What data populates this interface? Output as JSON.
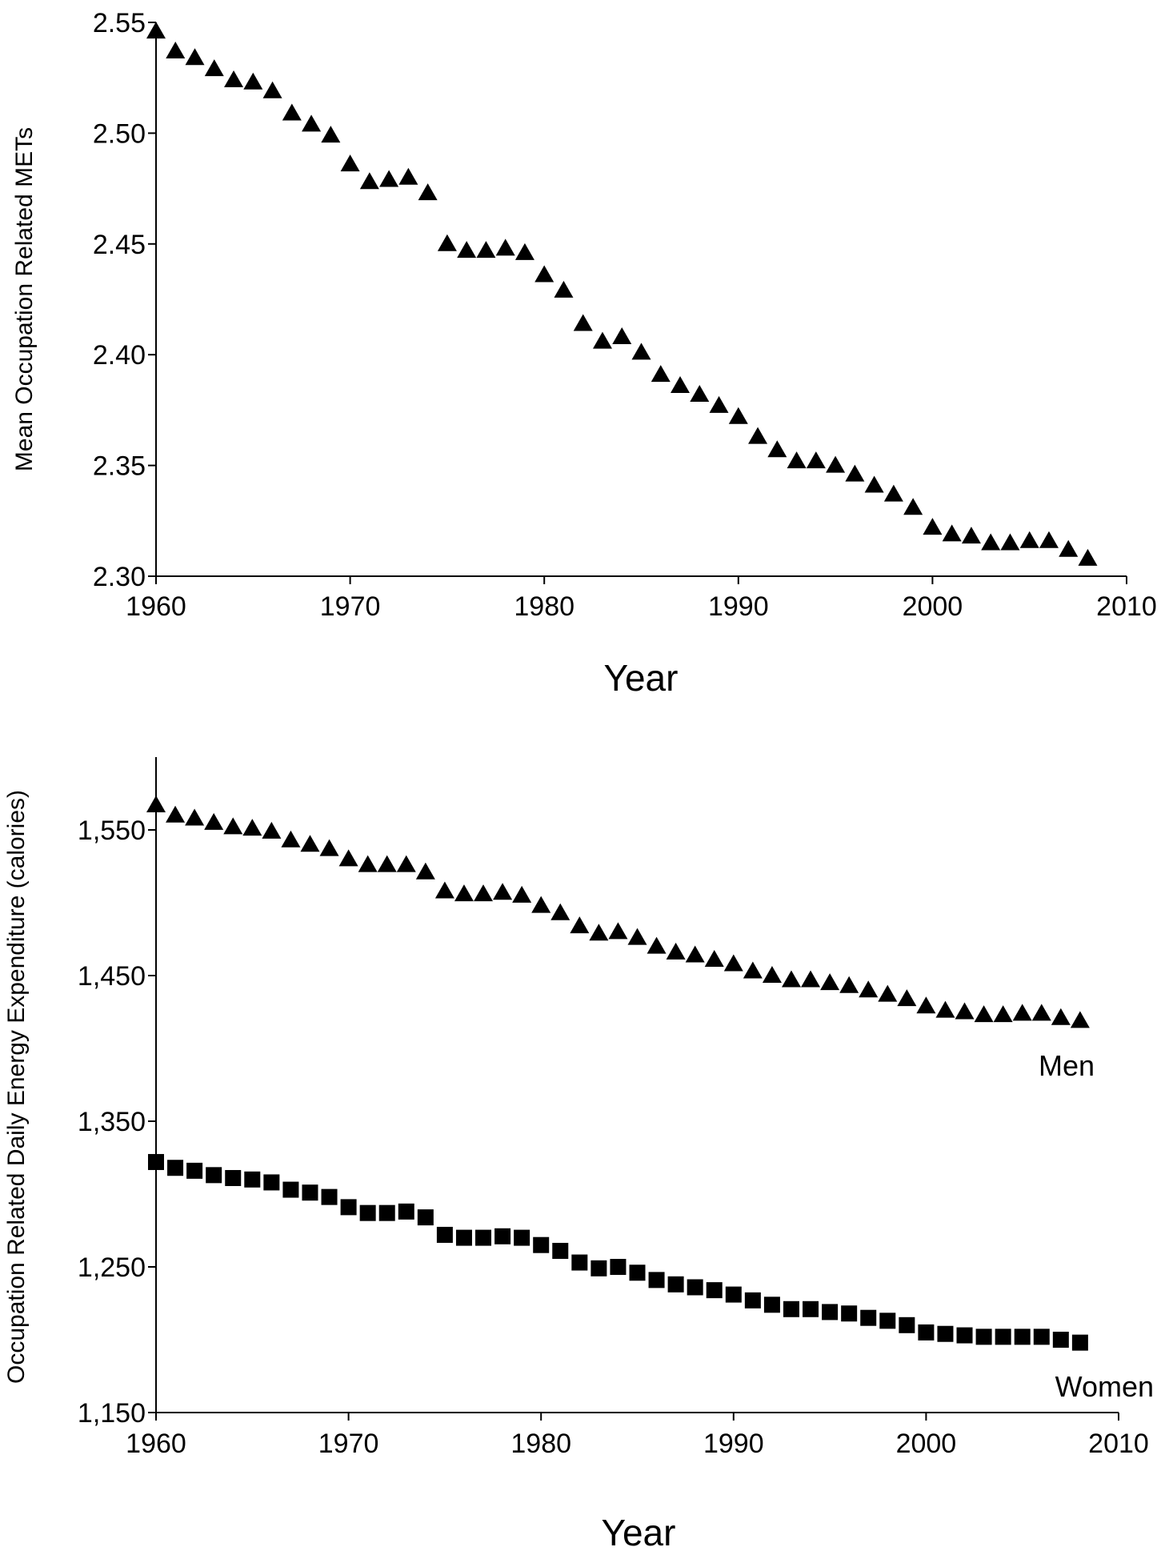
{
  "chart_data": [
    {
      "type": "scatter",
      "xlabel": "Year",
      "ylabel": "Mean Occupation Related METs",
      "xlim": [
        1960,
        2010
      ],
      "ylim": [
        2.3,
        2.55
      ],
      "x_ticks": [
        "1960",
        "1970",
        "1980",
        "1990",
        "2000",
        "2010"
      ],
      "y_ticks": [
        "2.30",
        "2.35",
        "2.40",
        "2.45",
        "2.50",
        "2.55"
      ],
      "grid": false,
      "series": [
        {
          "marker": "triangle",
          "color": "#000000",
          "x": [
            1960,
            1961,
            1962,
            1963,
            1964,
            1965,
            1966,
            1967,
            1968,
            1969,
            1970,
            1971,
            1972,
            1973,
            1974,
            1975,
            1976,
            1977,
            1978,
            1979,
            1980,
            1981,
            1982,
            1983,
            1984,
            1985,
            1986,
            1987,
            1988,
            1989,
            1990,
            1991,
            1992,
            1993,
            1994,
            1995,
            1996,
            1997,
            1998,
            1999,
            2000,
            2001,
            2002,
            2003,
            2004,
            2005,
            2006,
            2007,
            2008
          ],
          "y": [
            2.546,
            2.537,
            2.534,
            2.529,
            2.524,
            2.523,
            2.519,
            2.509,
            2.504,
            2.499,
            2.486,
            2.478,
            2.479,
            2.48,
            2.473,
            2.45,
            2.447,
            2.447,
            2.448,
            2.446,
            2.436,
            2.429,
            2.414,
            2.406,
            2.408,
            2.401,
            2.391,
            2.386,
            2.382,
            2.377,
            2.372,
            2.363,
            2.357,
            2.352,
            2.352,
            2.35,
            2.346,
            2.341,
            2.337,
            2.331,
            2.322,
            2.319,
            2.318,
            2.315,
            2.315,
            2.316,
            2.316,
            2.312,
            2.308
          ]
        }
      ]
    },
    {
      "type": "scatter",
      "xlabel": "Year",
      "ylabel": "Occupation Related Daily Energy Expenditure (calories)",
      "xlim": [
        1960,
        2010
      ],
      "ylim": [
        1150,
        1600
      ],
      "x_ticks": [
        "1960",
        "1970",
        "1980",
        "1990",
        "2000",
        "2010"
      ],
      "y_ticks": [
        "1,150",
        "1,250",
        "1,350",
        "1,450",
        "1,550"
      ],
      "grid": false,
      "series": [
        {
          "name": "Men",
          "marker": "triangle",
          "color": "#000000",
          "x": [
            1960,
            1961,
            1962,
            1963,
            1964,
            1965,
            1966,
            1967,
            1968,
            1969,
            1970,
            1971,
            1972,
            1973,
            1974,
            1975,
            1976,
            1977,
            1978,
            1979,
            1980,
            1981,
            1982,
            1983,
            1984,
            1985,
            1986,
            1987,
            1988,
            1989,
            1990,
            1991,
            1992,
            1993,
            1994,
            1995,
            1996,
            1997,
            1998,
            1999,
            2000,
            2001,
            2002,
            2003,
            2004,
            2005,
            2006,
            2007,
            2008
          ],
          "y": [
            1567,
            1560,
            1558,
            1555,
            1552,
            1551,
            1549,
            1543,
            1540,
            1537,
            1530,
            1526,
            1526,
            1526,
            1521,
            1508,
            1506,
            1506,
            1507,
            1505,
            1498,
            1493,
            1484,
            1479,
            1480,
            1476,
            1470,
            1466,
            1464,
            1461,
            1458,
            1453,
            1450,
            1447,
            1447,
            1445,
            1443,
            1440,
            1437,
            1434,
            1429,
            1426,
            1425,
            1423,
            1423,
            1424,
            1424,
            1421,
            1419
          ]
        },
        {
          "name": "Women",
          "marker": "square",
          "color": "#000000",
          "x": [
            1960,
            1961,
            1962,
            1963,
            1964,
            1965,
            1966,
            1967,
            1968,
            1969,
            1970,
            1971,
            1972,
            1973,
            1974,
            1975,
            1976,
            1977,
            1978,
            1979,
            1980,
            1981,
            1982,
            1983,
            1984,
            1985,
            1986,
            1987,
            1988,
            1989,
            1990,
            1991,
            1992,
            1993,
            1994,
            1995,
            1996,
            1997,
            1998,
            1999,
            2000,
            2001,
            2002,
            2003,
            2004,
            2005,
            2006,
            2007,
            2008
          ],
          "y": [
            1322,
            1318,
            1316,
            1313,
            1311,
            1310,
            1308,
            1303,
            1301,
            1298,
            1291,
            1287,
            1287,
            1288,
            1284,
            1272,
            1270,
            1270,
            1271,
            1270,
            1265,
            1261,
            1253,
            1249,
            1250,
            1246,
            1241,
            1238,
            1236,
            1234,
            1231,
            1227,
            1224,
            1221,
            1221,
            1219,
            1218,
            1215,
            1213,
            1210,
            1205,
            1204,
            1203,
            1202,
            1202,
            1202,
            1202,
            1200,
            1198
          ]
        }
      ]
    }
  ]
}
